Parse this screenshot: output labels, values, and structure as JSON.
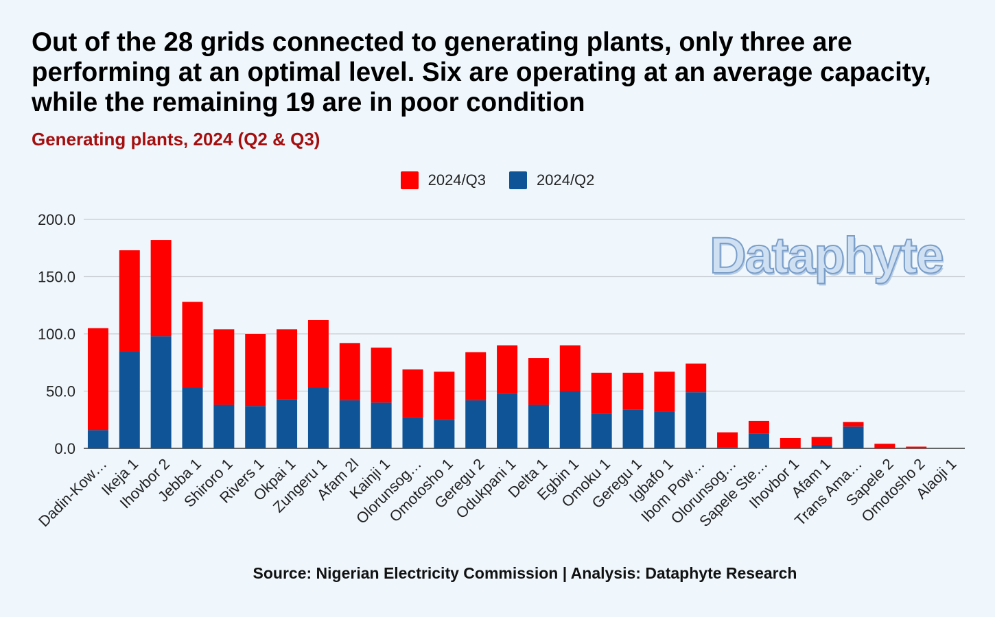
{
  "header": {
    "title": "Out of the 28 grids connected to generating plants, only three are performing at an optimal level. Six are operating at an average capacity, while the remaining 19 are in poor condition",
    "subtitle": "Generating plants, 2024 (Q2 & Q3)"
  },
  "watermark": {
    "text": "Dataphyte"
  },
  "footer": {
    "source": "Source: Nigerian Electricity Commission | Analysis: Dataphyte Research"
  },
  "colors": {
    "q3": "#ff0000",
    "q2": "#0f5496",
    "grid": "#c8ccd2",
    "axis": "#333333"
  },
  "chart_data": {
    "type": "bar",
    "stacked": true,
    "legend_position": "top",
    "grid": true,
    "ylim": [
      0,
      200
    ],
    "yticks": [
      "0.0",
      "50.0",
      "100.0",
      "150.0",
      "200.0"
    ],
    "categories": [
      "Dadin-Kow…",
      "Ikeja 1",
      "Ihovbor 2",
      "Jebba 1",
      "Shiroro 1",
      "Rivers 1",
      "Okpai 1",
      "Zungeru 1",
      "Afam 2l",
      "Kainji 1",
      "Olorunsog…",
      "Omotosho 1",
      "Geregu 2",
      "Odukpani 1",
      "Delta 1",
      "Egbin 1",
      "Omoku 1",
      "Geregu 1",
      "Igbafo 1",
      "Ibom Pow…",
      "Olorunsog…",
      "Sapele Ste…",
      "Ihovbor 1",
      "Afam 1",
      "Trans Ama…",
      "Sapele 2",
      "Omotosho 2",
      "Alaoji 1"
    ],
    "series": [
      {
        "name": "2024/Q2",
        "values": [
          16,
          85,
          98,
          53,
          38,
          37,
          43,
          53,
          42,
          40,
          27,
          25,
          42,
          48,
          38,
          50,
          30,
          34,
          32,
          49,
          1,
          13,
          0,
          3,
          19,
          0,
          0,
          0
        ]
      },
      {
        "name": "2024/Q3",
        "values": [
          89,
          88,
          84,
          75,
          66,
          63,
          61,
          59,
          50,
          48,
          42,
          42,
          42,
          42,
          41,
          40,
          36,
          32,
          35,
          25,
          13,
          11,
          9,
          7,
          4,
          4,
          1.5,
          0
        ]
      }
    ]
  }
}
